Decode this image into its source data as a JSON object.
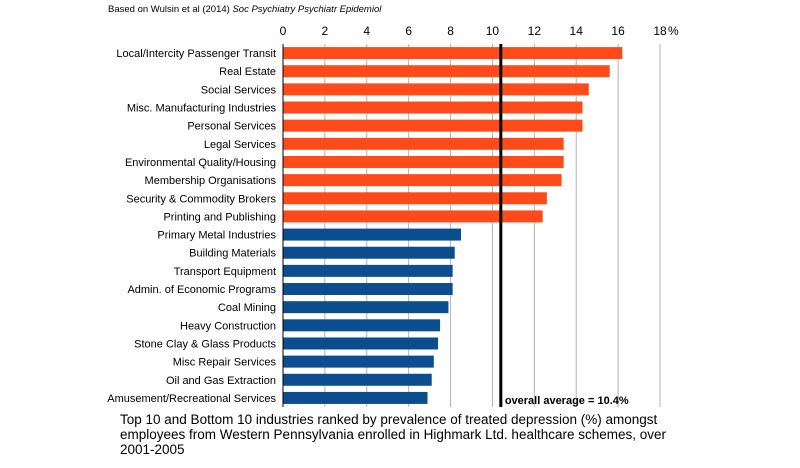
{
  "source": {
    "prefix": "Based on Wulsin et al (2014) ",
    "journal": "Soc Psychiatry Psychiatr Epidemiol"
  },
  "caption": "Top 10 and Bottom 10 industries ranked by prevalence of treated depression (%) amongst employees from Western Pennsylvania enrolled in Highmark Ltd. healthcare schemes, over 2001-2005",
  "colors": {
    "top": "#ff4b1a",
    "bottom": "#0b4d8f",
    "grid": "#b3b3b3",
    "reference_line": "#000000"
  },
  "chart_data": {
    "type": "bar",
    "orientation": "horizontal",
    "categories": [
      "Local/Intercity Passenger Transit",
      "Real Estate",
      "Social Services",
      "Misc. Manufacturing Industries",
      "Personal Services",
      "Legal Services",
      "Environmental Quality/Housing",
      "Membership Organisations",
      "Security & Commodity Brokers",
      "Printing and Publishing",
      "Primary Metal Industries",
      "Building Materials",
      "Transport Equipment",
      "Admin. of Economic Programs",
      "Coal Mining",
      "Heavy Construction",
      "Stone Clay & Glass Products",
      "Misc Repair Services",
      "Oil and Gas Extraction",
      "Amusement/Recreational Services"
    ],
    "values": [
      16.2,
      15.6,
      14.6,
      14.3,
      14.3,
      13.4,
      13.4,
      13.3,
      12.6,
      12.4,
      8.5,
      8.2,
      8.1,
      8.1,
      7.9,
      7.5,
      7.4,
      7.2,
      7.1,
      6.9
    ],
    "groups": [
      "top",
      "top",
      "top",
      "top",
      "top",
      "top",
      "top",
      "top",
      "top",
      "top",
      "bottom",
      "bottom",
      "bottom",
      "bottom",
      "bottom",
      "bottom",
      "bottom",
      "bottom",
      "bottom",
      "bottom"
    ],
    "xlim": [
      0,
      18
    ],
    "xticks": [
      0,
      2,
      4,
      6,
      8,
      10,
      12,
      14,
      16,
      18
    ],
    "xunit": "%",
    "xaxis_position": "top",
    "grid": true,
    "reference_line": {
      "value": 10.4,
      "label": "overall average = 10.4%"
    }
  }
}
